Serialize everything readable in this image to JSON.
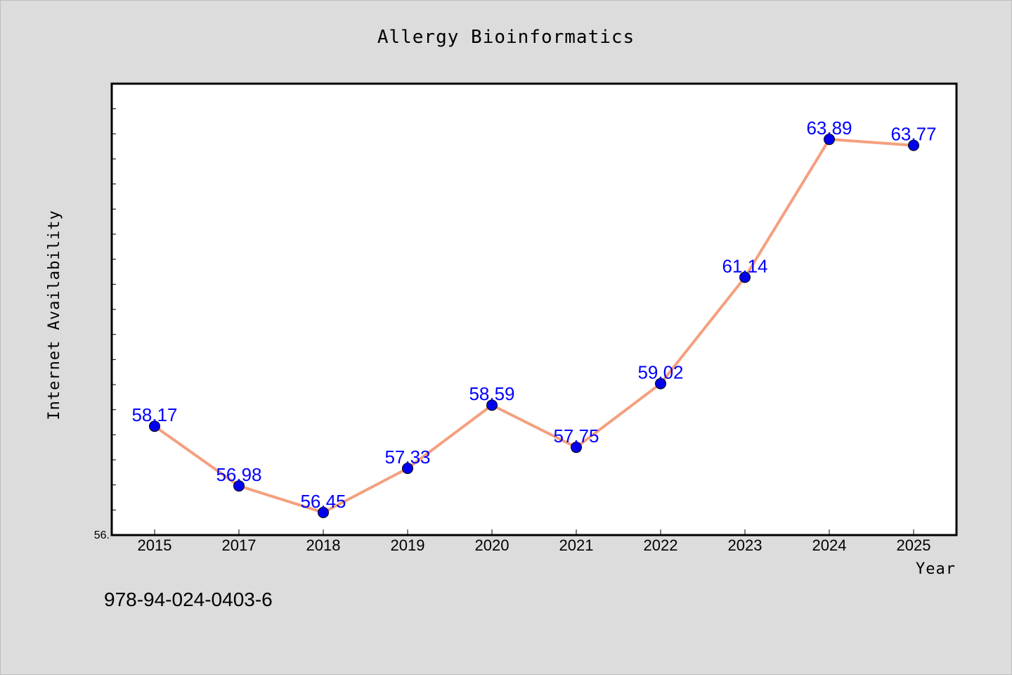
{
  "chart_data": {
    "type": "line",
    "title": "Allergy Bioinformatics",
    "xlabel": "Year",
    "ylabel": "Internet Availability",
    "categories": [
      "2015",
      "2017",
      "2018",
      "2019",
      "2020",
      "2021",
      "2022",
      "2023",
      "2024",
      "2025"
    ],
    "series": [
      {
        "values": [
          58.17,
          56.98,
          56.45,
          57.33,
          58.59,
          57.75,
          59.02,
          61.14,
          63.89,
          63.77
        ],
        "data_labels": [
          "58.17",
          "56.98",
          "56.45",
          "57.33",
          "58.59",
          "57.75",
          "59.02",
          "61.14",
          "63.89",
          "63.77"
        ],
        "line_color": "#f4a07f",
        "marker_color": "#0000ee"
      }
    ],
    "ylim": [
      56.0,
      65.0
    ],
    "ytick_label": "56.",
    "grid": false,
    "legend": "none"
  },
  "footer": {
    "isbn": "978-94-024-0403-6"
  },
  "colors": {
    "background": "#dcdcdc",
    "plot_background": "#ffffff",
    "data_label": "#0000ff"
  }
}
